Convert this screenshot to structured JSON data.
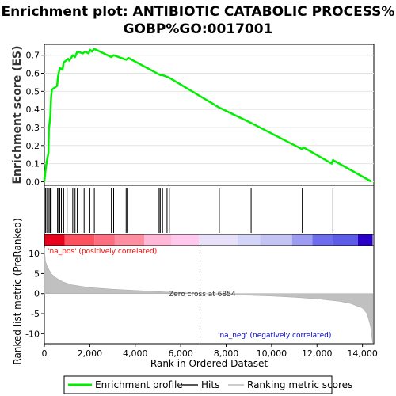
{
  "chart_data": {
    "type": "line",
    "title_line1": "Enrichment plot: ANTIBIOTIC CATABOLIC PROCESS%",
    "title_line2": "GOBP%GO:0017001",
    "es_ylabel": "Enrichment score (ES)",
    "es_yticks": [
      "0.0",
      "0.1",
      "0.2",
      "0.3",
      "0.4",
      "0.5",
      "0.6",
      "0.7"
    ],
    "es_ylim": [
      -0.02,
      0.76
    ],
    "xlim": [
      0,
      14500
    ],
    "xlabel": "Rank in Ordered Dataset",
    "xticks": [
      "0",
      "2,000",
      "4,000",
      "6,000",
      "8,000",
      "10,000",
      "12,000",
      "14,000"
    ],
    "metric_ylabel": "Ranked list metric (PreRanked)",
    "metric_yticks": [
      "10",
      "5",
      "0",
      "-5",
      "-10"
    ],
    "metric_ylim": [
      -12.5,
      12
    ],
    "positive_label": "'na_pos' (positively correlated)",
    "negative_label": "'na_neg' (negatively correlated)",
    "zero_cross_label": "Zero cross at 6854",
    "zero_cross_rank": 6854,
    "enrichment_curve": [
      [
        0,
        0.0
      ],
      [
        50,
        0.06
      ],
      [
        100,
        0.11
      ],
      [
        180,
        0.16
      ],
      [
        200,
        0.29
      ],
      [
        260,
        0.36
      ],
      [
        300,
        0.47
      ],
      [
        330,
        0.51
      ],
      [
        560,
        0.53
      ],
      [
        600,
        0.58
      ],
      [
        680,
        0.63
      ],
      [
        800,
        0.62
      ],
      [
        850,
        0.66
      ],
      [
        1050,
        0.68
      ],
      [
        1100,
        0.67
      ],
      [
        1250,
        0.7
      ],
      [
        1350,
        0.69
      ],
      [
        1450,
        0.72
      ],
      [
        1700,
        0.71
      ],
      [
        1780,
        0.72
      ],
      [
        1950,
        0.71
      ],
      [
        2000,
        0.73
      ],
      [
        2100,
        0.72
      ],
      [
        2200,
        0.735
      ],
      [
        2950,
        0.69
      ],
      [
        3050,
        0.7
      ],
      [
        3600,
        0.675
      ],
      [
        3700,
        0.685
      ],
      [
        5100,
        0.59
      ],
      [
        5200,
        0.59
      ],
      [
        5500,
        0.575
      ],
      [
        7700,
        0.41
      ],
      [
        9100,
        0.325
      ],
      [
        11350,
        0.18
      ],
      [
        11400,
        0.19
      ],
      [
        12650,
        0.1
      ],
      [
        12700,
        0.12
      ],
      [
        14400,
        0.0
      ]
    ],
    "hit_ranks": [
      50,
      110,
      160,
      210,
      260,
      300,
      580,
      630,
      680,
      750,
      850,
      1000,
      1250,
      1350,
      1450,
      1750,
      2000,
      2200,
      2950,
      3050,
      3600,
      3650,
      5050,
      5100,
      5200,
      5400,
      5500,
      7700,
      9100,
      11350,
      12700
    ],
    "ranked_metric_samples": [
      [
        0,
        11.5
      ],
      [
        50,
        8
      ],
      [
        150,
        6.5
      ],
      [
        300,
        5
      ],
      [
        500,
        4
      ],
      [
        800,
        3
      ],
      [
        1200,
        2.2
      ],
      [
        2000,
        1.5
      ],
      [
        3000,
        1.1
      ],
      [
        4000,
        0.8
      ],
      [
        5000,
        0.5
      ],
      [
        6000,
        0.25
      ],
      [
        6854,
        0
      ],
      [
        8000,
        -0.2
      ],
      [
        9000,
        -0.4
      ],
      [
        10000,
        -0.6
      ],
      [
        11000,
        -0.9
      ],
      [
        12000,
        -1.3
      ],
      [
        13000,
        -1.9
      ],
      [
        13500,
        -2.5
      ],
      [
        14000,
        -3.6
      ],
      [
        14200,
        -5
      ],
      [
        14350,
        -8
      ],
      [
        14450,
        -12.5
      ]
    ],
    "legend": [
      {
        "label": "Enrichment profile",
        "color": "#00ee00"
      },
      {
        "label": "Hits",
        "color": "#555555"
      },
      {
        "label": "Ranking metric scores",
        "color": "#cccccc"
      }
    ],
    "colors": {
      "curve": "#00ee00",
      "metric_fill": "#c0c0c0",
      "positive_text": "#ff0000",
      "negative_text": "#0000cc",
      "zero_line": "#aaaaaa"
    },
    "heatmap_bands": [
      {
        "from": 0,
        "to": 900,
        "color": "#e8001c"
      },
      {
        "from": 900,
        "to": 2200,
        "color": "#ff5060"
      },
      {
        "from": 2200,
        "to": 3100,
        "color": "#ff6e80"
      },
      {
        "from": 3100,
        "to": 4400,
        "color": "#ff8ea0"
      },
      {
        "from": 4400,
        "to": 5600,
        "color": "#ffb8d8"
      },
      {
        "from": 5600,
        "to": 6800,
        "color": "#ffc8ec"
      },
      {
        "from": 6800,
        "to": 8500,
        "color": "#e8e0f8"
      },
      {
        "from": 8500,
        "to": 9500,
        "color": "#d4d4f8"
      },
      {
        "from": 9500,
        "to": 10900,
        "color": "#c4c4f4"
      },
      {
        "from": 10900,
        "to": 11800,
        "color": "#9c9cf0"
      },
      {
        "from": 11800,
        "to": 12700,
        "color": "#6c6cec"
      },
      {
        "from": 12700,
        "to": 13800,
        "color": "#5c5ce8"
      },
      {
        "from": 13800,
        "to": 14450,
        "color": "#2a00c8"
      }
    ]
  }
}
